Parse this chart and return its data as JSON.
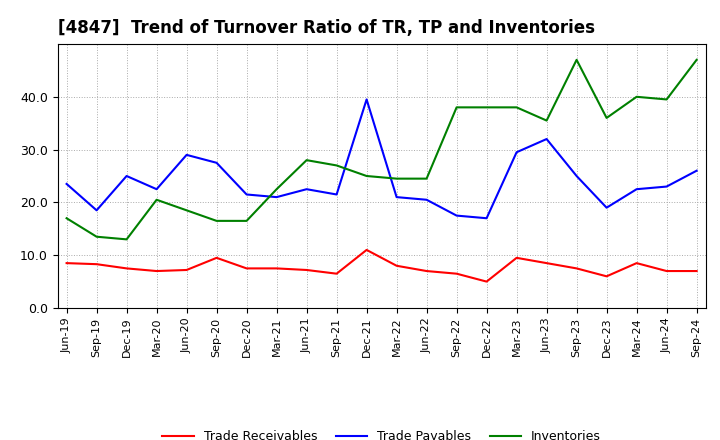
{
  "title": "[4847]  Trend of Turnover Ratio of TR, TP and Inventories",
  "x_labels": [
    "Jun-19",
    "Sep-19",
    "Dec-19",
    "Mar-20",
    "Jun-20",
    "Sep-20",
    "Dec-20",
    "Mar-21",
    "Jun-21",
    "Sep-21",
    "Dec-21",
    "Mar-22",
    "Jun-22",
    "Sep-22",
    "Dec-22",
    "Mar-23",
    "Jun-23",
    "Sep-23",
    "Dec-23",
    "Mar-24",
    "Jun-24",
    "Sep-24"
  ],
  "trade_receivables": [
    8.5,
    8.3,
    7.5,
    7.0,
    7.2,
    9.5,
    7.5,
    7.5,
    7.2,
    6.5,
    11.0,
    8.0,
    7.0,
    6.5,
    5.0,
    9.5,
    8.5,
    7.5,
    6.0,
    8.5,
    7.0,
    7.0
  ],
  "trade_payables": [
    23.5,
    18.5,
    25.0,
    22.5,
    29.0,
    27.5,
    21.5,
    21.0,
    22.5,
    21.5,
    39.5,
    21.0,
    20.5,
    17.5,
    17.0,
    29.5,
    32.0,
    25.0,
    19.0,
    22.5,
    23.0,
    26.0
  ],
  "inventories": [
    17.0,
    13.5,
    13.0,
    20.5,
    18.5,
    16.5,
    16.5,
    22.5,
    28.0,
    27.0,
    25.0,
    24.5,
    24.5,
    38.0,
    38.0,
    38.0,
    35.5,
    47.0,
    36.0,
    40.0,
    39.5,
    47.0
  ],
  "ylim": [
    0.0,
    50.0
  ],
  "yticks": [
    0.0,
    10.0,
    20.0,
    30.0,
    40.0
  ],
  "colors": {
    "trade_receivables": "#ff0000",
    "trade_payables": "#0000ff",
    "inventories": "#008000"
  },
  "legend_labels": [
    "Trade Receivables",
    "Trade Payables",
    "Inventories"
  ],
  "background_color": "#ffffff",
  "grid_color": "#aaaaaa",
  "linewidth": 1.5,
  "title_fontsize": 12,
  "tick_fontsize": 8,
  "legend_fontsize": 9
}
